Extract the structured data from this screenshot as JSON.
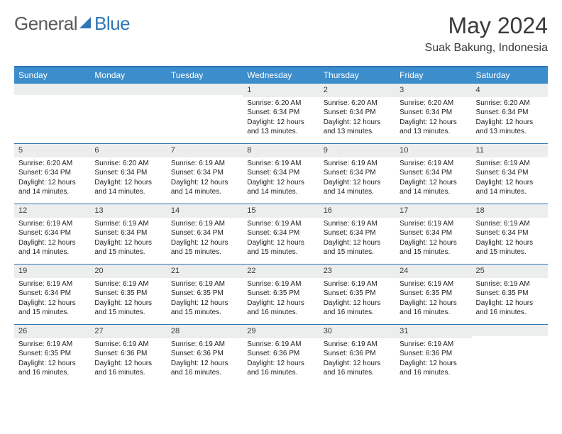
{
  "brand": {
    "part1": "General",
    "part2": "Blue",
    "part2_color": "#2f76b6"
  },
  "title": "May 2024",
  "location": "Suak Bakung, Indonesia",
  "colors": {
    "header_bg": "#3c8dcc",
    "header_border": "#2f76b6",
    "daynum_bg": "#eceded",
    "text": "#222222"
  },
  "days_of_week": [
    "Sunday",
    "Monday",
    "Tuesday",
    "Wednesday",
    "Thursday",
    "Friday",
    "Saturday"
  ],
  "weeks": [
    [
      {
        "n": "",
        "sr": "",
        "ss": "",
        "dl": ""
      },
      {
        "n": "",
        "sr": "",
        "ss": "",
        "dl": ""
      },
      {
        "n": "",
        "sr": "",
        "ss": "",
        "dl": ""
      },
      {
        "n": "1",
        "sr": "6:20 AM",
        "ss": "6:34 PM",
        "dl": "12 hours and 13 minutes."
      },
      {
        "n": "2",
        "sr": "6:20 AM",
        "ss": "6:34 PM",
        "dl": "12 hours and 13 minutes."
      },
      {
        "n": "3",
        "sr": "6:20 AM",
        "ss": "6:34 PM",
        "dl": "12 hours and 13 minutes."
      },
      {
        "n": "4",
        "sr": "6:20 AM",
        "ss": "6:34 PM",
        "dl": "12 hours and 13 minutes."
      }
    ],
    [
      {
        "n": "5",
        "sr": "6:20 AM",
        "ss": "6:34 PM",
        "dl": "12 hours and 14 minutes."
      },
      {
        "n": "6",
        "sr": "6:20 AM",
        "ss": "6:34 PM",
        "dl": "12 hours and 14 minutes."
      },
      {
        "n": "7",
        "sr": "6:19 AM",
        "ss": "6:34 PM",
        "dl": "12 hours and 14 minutes."
      },
      {
        "n": "8",
        "sr": "6:19 AM",
        "ss": "6:34 PM",
        "dl": "12 hours and 14 minutes."
      },
      {
        "n": "9",
        "sr": "6:19 AM",
        "ss": "6:34 PM",
        "dl": "12 hours and 14 minutes."
      },
      {
        "n": "10",
        "sr": "6:19 AM",
        "ss": "6:34 PM",
        "dl": "12 hours and 14 minutes."
      },
      {
        "n": "11",
        "sr": "6:19 AM",
        "ss": "6:34 PM",
        "dl": "12 hours and 14 minutes."
      }
    ],
    [
      {
        "n": "12",
        "sr": "6:19 AM",
        "ss": "6:34 PM",
        "dl": "12 hours and 14 minutes."
      },
      {
        "n": "13",
        "sr": "6:19 AM",
        "ss": "6:34 PM",
        "dl": "12 hours and 15 minutes."
      },
      {
        "n": "14",
        "sr": "6:19 AM",
        "ss": "6:34 PM",
        "dl": "12 hours and 15 minutes."
      },
      {
        "n": "15",
        "sr": "6:19 AM",
        "ss": "6:34 PM",
        "dl": "12 hours and 15 minutes."
      },
      {
        "n": "16",
        "sr": "6:19 AM",
        "ss": "6:34 PM",
        "dl": "12 hours and 15 minutes."
      },
      {
        "n": "17",
        "sr": "6:19 AM",
        "ss": "6:34 PM",
        "dl": "12 hours and 15 minutes."
      },
      {
        "n": "18",
        "sr": "6:19 AM",
        "ss": "6:34 PM",
        "dl": "12 hours and 15 minutes."
      }
    ],
    [
      {
        "n": "19",
        "sr": "6:19 AM",
        "ss": "6:34 PM",
        "dl": "12 hours and 15 minutes."
      },
      {
        "n": "20",
        "sr": "6:19 AM",
        "ss": "6:35 PM",
        "dl": "12 hours and 15 minutes."
      },
      {
        "n": "21",
        "sr": "6:19 AM",
        "ss": "6:35 PM",
        "dl": "12 hours and 15 minutes."
      },
      {
        "n": "22",
        "sr": "6:19 AM",
        "ss": "6:35 PM",
        "dl": "12 hours and 16 minutes."
      },
      {
        "n": "23",
        "sr": "6:19 AM",
        "ss": "6:35 PM",
        "dl": "12 hours and 16 minutes."
      },
      {
        "n": "24",
        "sr": "6:19 AM",
        "ss": "6:35 PM",
        "dl": "12 hours and 16 minutes."
      },
      {
        "n": "25",
        "sr": "6:19 AM",
        "ss": "6:35 PM",
        "dl": "12 hours and 16 minutes."
      }
    ],
    [
      {
        "n": "26",
        "sr": "6:19 AM",
        "ss": "6:35 PM",
        "dl": "12 hours and 16 minutes."
      },
      {
        "n": "27",
        "sr": "6:19 AM",
        "ss": "6:36 PM",
        "dl": "12 hours and 16 minutes."
      },
      {
        "n": "28",
        "sr": "6:19 AM",
        "ss": "6:36 PM",
        "dl": "12 hours and 16 minutes."
      },
      {
        "n": "29",
        "sr": "6:19 AM",
        "ss": "6:36 PM",
        "dl": "12 hours and 16 minutes."
      },
      {
        "n": "30",
        "sr": "6:19 AM",
        "ss": "6:36 PM",
        "dl": "12 hours and 16 minutes."
      },
      {
        "n": "31",
        "sr": "6:19 AM",
        "ss": "6:36 PM",
        "dl": "12 hours and 16 minutes."
      },
      {
        "n": "",
        "sr": "",
        "ss": "",
        "dl": ""
      }
    ]
  ],
  "labels": {
    "sunrise": "Sunrise:",
    "sunset": "Sunset:",
    "daylight": "Daylight:"
  }
}
